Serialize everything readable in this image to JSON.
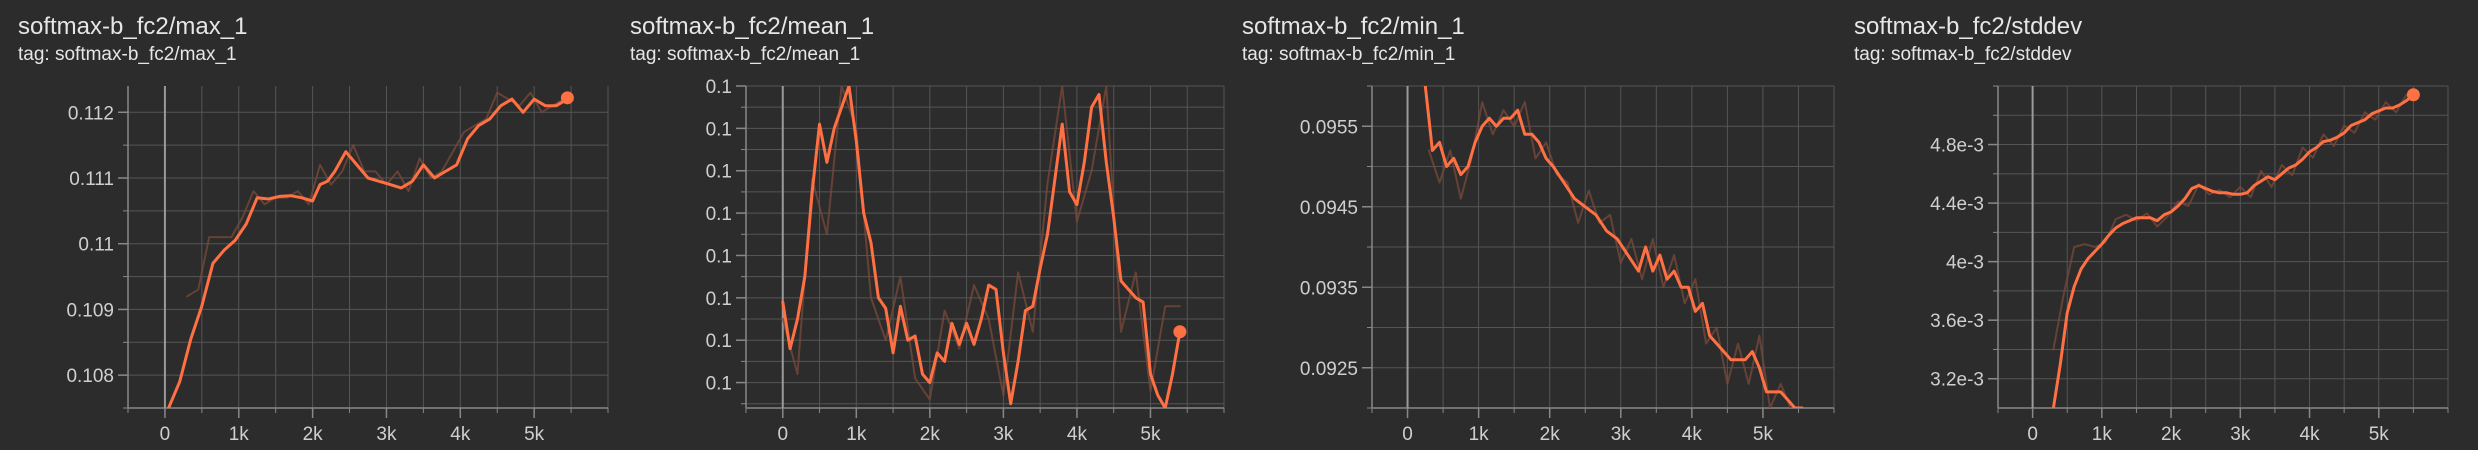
{
  "colors": {
    "background": "#2c2c2c",
    "grid": "#555555",
    "axis": "#888888",
    "zero_line": "#9a9a9a",
    "smoothed": "#ff7043",
    "raw": "#7a4a3a",
    "text": "#e6e6e6",
    "tick_text": "#cfcfcf"
  },
  "chart_data": [
    {
      "type": "line",
      "title": "softmax-b_fc2/max_1",
      "tag": "tag: softmax-b_fc2/max_1",
      "x_ticks": [
        0,
        1000,
        2000,
        3000,
        4000,
        5000
      ],
      "x_tick_labels": [
        "0",
        "1k",
        "2k",
        "3k",
        "4k",
        "5k"
      ],
      "y_ticks": [
        0.108,
        0.109,
        0.11,
        0.111,
        0.112
      ],
      "y_tick_labels": [
        "0.108",
        "0.109",
        "0.11",
        "0.111",
        "0.112"
      ],
      "xlim": [
        -500,
        6000
      ],
      "ylim": [
        0.1075,
        0.1124
      ],
      "grid": true,
      "series": [
        {
          "style": "smoothed",
          "x": [
            50,
            200,
            350,
            500,
            650,
            800,
            950,
            1100,
            1250,
            1400,
            1550,
            1700,
            1850,
            2000,
            2100,
            2200,
            2300,
            2450,
            2600,
            2750,
            2900,
            3050,
            3200,
            3350,
            3500,
            3650,
            3800,
            3950,
            4100,
            4250,
            4400,
            4550,
            4700,
            4850,
            5000,
            5150,
            5300,
            5450
          ],
          "y": [
            0.1075,
            0.1079,
            0.10855,
            0.10905,
            0.1097,
            0.1099,
            0.11005,
            0.1103,
            0.1107,
            0.11068,
            0.11072,
            0.11073,
            0.1107,
            0.11065,
            0.1109,
            0.11095,
            0.1111,
            0.1114,
            0.1112,
            0.111,
            0.11095,
            0.1109,
            0.11085,
            0.11095,
            0.1112,
            0.111,
            0.1111,
            0.1112,
            0.1116,
            0.1118,
            0.1119,
            0.1121,
            0.1122,
            0.112,
            0.1122,
            0.1121,
            0.1121,
            0.1122
          ]
        },
        {
          "style": "raw",
          "x": [
            300,
            450,
            600,
            750,
            900,
            1050,
            1200,
            1350,
            1500,
            1650,
            1800,
            1950,
            2100,
            2250,
            2400,
            2550,
            2700,
            2850,
            3000,
            3150,
            3300,
            3450,
            3600,
            3750,
            3900,
            4050,
            4200,
            4350,
            4500,
            4650,
            4800,
            4950,
            5100,
            5250,
            5400
          ],
          "y": [
            0.1092,
            0.1093,
            0.1101,
            0.1101,
            0.1101,
            0.1104,
            0.1108,
            0.1106,
            0.1107,
            0.1107,
            0.1108,
            0.1106,
            0.1112,
            0.1109,
            0.1111,
            0.1115,
            0.1111,
            0.1111,
            0.1109,
            0.1111,
            0.1108,
            0.1113,
            0.111,
            0.1111,
            0.1114,
            0.1117,
            0.1118,
            0.1119,
            0.1123,
            0.1122,
            0.1121,
            0.1123,
            0.112,
            0.1121,
            0.1122
          ]
        }
      ],
      "last_point": {
        "x": 5450,
        "y": 0.11222
      }
    },
    {
      "type": "line",
      "title": "softmax-b_fc2/mean_1",
      "tag": "tag: softmax-b_fc2/mean_1",
      "x_ticks": [
        0,
        1000,
        2000,
        3000,
        4000,
        5000
      ],
      "x_tick_labels": [
        "0",
        "1k",
        "2k",
        "3k",
        "4k",
        "5k"
      ],
      "y_ticks": [
        0,
        1,
        2,
        3,
        4,
        5,
        6,
        7
      ],
      "y_tick_labels": [
        "0.1",
        "0.1",
        "0.1",
        "0.1",
        "0.1",
        "0.1",
        "0.1",
        "0.1"
      ],
      "xlim": [
        -500,
        6000
      ],
      "ylim": [
        -0.6,
        7.0
      ],
      "grid": true,
      "series": [
        {
          "style": "smoothed",
          "x": [
            0,
            100,
            200,
            300,
            400,
            500,
            600,
            700,
            800,
            900,
            1000,
            1100,
            1200,
            1300,
            1400,
            1500,
            1600,
            1700,
            1800,
            1900,
            2000,
            2100,
            2200,
            2300,
            2400,
            2500,
            2600,
            2700,
            2800,
            2900,
            3000,
            3100,
            3200,
            3300,
            3400,
            3500,
            3600,
            3700,
            3800,
            3900,
            4000,
            4100,
            4200,
            4300,
            4400,
            4500,
            4600,
            4700,
            4800,
            4900,
            5000,
            5100,
            5200,
            5300,
            5400
          ],
          "y": [
            1.9,
            0.8,
            1.5,
            2.5,
            4.5,
            6.1,
            5.2,
            6.0,
            6.5,
            7.0,
            5.7,
            4.0,
            3.3,
            2.0,
            1.75,
            0.7,
            1.8,
            1.0,
            1.1,
            0.2,
            0.0,
            0.7,
            0.5,
            1.4,
            0.9,
            1.4,
            0.9,
            1.5,
            2.3,
            2.2,
            0.7,
            -0.5,
            0.5,
            1.7,
            1.8,
            2.7,
            3.5,
            4.8,
            6.1,
            4.5,
            4.2,
            5.2,
            6.5,
            6.8,
            5.2,
            3.9,
            2.4,
            2.2,
            2.0,
            1.9,
            0.2,
            -0.3,
            -0.6,
            0.2,
            1.2
          ]
        },
        {
          "style": "raw",
          "x": [
            0,
            200,
            400,
            600,
            800,
            1000,
            1200,
            1400,
            1600,
            1800,
            2000,
            2200,
            2400,
            2600,
            2800,
            3000,
            3200,
            3400,
            3600,
            3800,
            4000,
            4200,
            4400,
            4600,
            4800,
            5000,
            5200,
            5400
          ],
          "y": [
            1.5,
            0.2,
            4.8,
            3.5,
            7.0,
            6.0,
            2.0,
            1.0,
            2.5,
            0.1,
            -0.4,
            1.7,
            0.8,
            2.3,
            1.5,
            -0.3,
            2.6,
            1.2,
            4.7,
            7.0,
            3.8,
            5.0,
            7.0,
            1.2,
            2.6,
            -0.2,
            1.8,
            1.8
          ]
        }
      ],
      "last_point": {
        "x": 5400,
        "y": 1.2
      }
    },
    {
      "type": "line",
      "title": "softmax-b_fc2/min_1",
      "tag": "tag: softmax-b_fc2/min_1",
      "x_ticks": [
        0,
        1000,
        2000,
        3000,
        4000,
        5000
      ],
      "x_tick_labels": [
        "0",
        "1k",
        "2k",
        "3k",
        "4k",
        "5k"
      ],
      "y_ticks": [
        0.0925,
        0.0935,
        0.0945,
        0.0955
      ],
      "y_tick_labels": [
        "0.0925",
        "0.0935",
        "0.0945",
        "0.0955"
      ],
      "xlim": [
        -500,
        6000
      ],
      "ylim": [
        0.092,
        0.096
      ],
      "grid": true,
      "series": [
        {
          "style": "smoothed",
          "x": [
            250,
            350,
            450,
            550,
            650,
            750,
            850,
            950,
            1050,
            1150,
            1250,
            1350,
            1450,
            1550,
            1650,
            1750,
            1850,
            1950,
            2050,
            2200,
            2350,
            2500,
            2650,
            2800,
            2950,
            3100,
            3250,
            3350,
            3450,
            3550,
            3650,
            3750,
            3850,
            3950,
            4050,
            4150,
            4250,
            4350,
            4450,
            4550,
            4650,
            4750,
            4850,
            4950,
            5050,
            5150,
            5250,
            5350,
            5450,
            5550
          ],
          "y": [
            0.096,
            0.0952,
            0.0953,
            0.095,
            0.0951,
            0.0949,
            0.095,
            0.0953,
            0.0955,
            0.0956,
            0.0955,
            0.0956,
            0.0956,
            0.0957,
            0.0954,
            0.0954,
            0.0953,
            0.0951,
            0.095,
            0.0948,
            0.0946,
            0.0945,
            0.0944,
            0.0942,
            0.0941,
            0.0939,
            0.0937,
            0.094,
            0.0937,
            0.0939,
            0.0936,
            0.0937,
            0.0935,
            0.0935,
            0.0932,
            0.0933,
            0.0929,
            0.0928,
            0.0927,
            0.0926,
            0.0926,
            0.0926,
            0.0927,
            0.0925,
            0.0922,
            0.0922,
            0.0922,
            0.0921,
            0.092,
            0.092
          ]
        },
        {
          "style": "raw",
          "x": [
            300,
            450,
            600,
            750,
            900,
            1050,
            1200,
            1350,
            1500,
            1650,
            1800,
            1950,
            2100,
            2250,
            2400,
            2550,
            2700,
            2850,
            3000,
            3150,
            3300,
            3450,
            3600,
            3750,
            3900,
            4050,
            4200,
            4350,
            4500,
            4650,
            4800,
            4950,
            5100,
            5250,
            5400
          ],
          "y": [
            0.0952,
            0.0948,
            0.0952,
            0.0946,
            0.0951,
            0.0958,
            0.0954,
            0.0957,
            0.0955,
            0.0958,
            0.0951,
            0.0953,
            0.0949,
            0.0948,
            0.0943,
            0.0947,
            0.0943,
            0.0944,
            0.0938,
            0.0941,
            0.0936,
            0.0941,
            0.0935,
            0.0939,
            0.0933,
            0.0936,
            0.0928,
            0.093,
            0.0923,
            0.0928,
            0.0923,
            0.0929,
            0.092,
            0.0923,
            0.0919
          ]
        }
      ],
      "last_point": null
    },
    {
      "type": "line",
      "title": "softmax-b_fc2/stddev",
      "tag": "tag: softmax-b_fc2/stddev",
      "x_ticks": [
        0,
        1000,
        2000,
        3000,
        4000,
        5000
      ],
      "x_tick_labels": [
        "0",
        "1k",
        "2k",
        "3k",
        "4k",
        "5k"
      ],
      "y_ticks": [
        0.0032,
        0.0036,
        0.004,
        0.0044,
        0.0048
      ],
      "y_tick_labels": [
        "3.2e-3",
        "3.6e-3",
        "4e-3",
        "4.4e-3",
        "4.8e-3"
      ],
      "xlim": [
        -500,
        6000
      ],
      "ylim": [
        0.003,
        0.0052
      ],
      "grid": true,
      "series": [
        {
          "style": "smoothed",
          "x": [
            300,
            400,
            500,
            600,
            700,
            800,
            900,
            1000,
            1100,
            1200,
            1300,
            1400,
            1500,
            1600,
            1700,
            1800,
            1900,
            2000,
            2100,
            2200,
            2300,
            2400,
            2500,
            2600,
            2700,
            2800,
            2900,
            3000,
            3100,
            3200,
            3300,
            3400,
            3500,
            3600,
            3700,
            3800,
            3900,
            4000,
            4100,
            4200,
            4300,
            4400,
            4500,
            4600,
            4700,
            4800,
            4900,
            5000,
            5100,
            5200,
            5300,
            5400,
            5500
          ],
          "y": [
            0.003,
            0.0033,
            0.00365,
            0.00383,
            0.00395,
            0.00402,
            0.00407,
            0.00412,
            0.00418,
            0.00423,
            0.00426,
            0.00428,
            0.0043,
            0.0043,
            0.0043,
            0.00428,
            0.00432,
            0.00434,
            0.00438,
            0.00443,
            0.0045,
            0.00452,
            0.0045,
            0.00448,
            0.00447,
            0.00447,
            0.00446,
            0.00446,
            0.00447,
            0.00452,
            0.00455,
            0.00458,
            0.00456,
            0.0046,
            0.00464,
            0.00466,
            0.0047,
            0.00475,
            0.00478,
            0.00482,
            0.00483,
            0.00485,
            0.00488,
            0.00493,
            0.00495,
            0.00497,
            0.00501,
            0.00503,
            0.00505,
            0.00505,
            0.00507,
            0.0051,
            0.00514
          ]
        },
        {
          "style": "raw",
          "x": [
            300,
            450,
            600,
            750,
            900,
            1050,
            1200,
            1350,
            1500,
            1650,
            1800,
            1950,
            2100,
            2250,
            2400,
            2550,
            2700,
            2850,
            3000,
            3150,
            3300,
            3450,
            3600,
            3750,
            3900,
            4050,
            4200,
            4350,
            4500,
            4650,
            4800,
            4950,
            5100,
            5250,
            5400
          ],
          "y": [
            0.0034,
            0.00378,
            0.0041,
            0.00412,
            0.0041,
            0.00413,
            0.00429,
            0.00432,
            0.00428,
            0.00433,
            0.00424,
            0.00431,
            0.00441,
            0.00438,
            0.00453,
            0.00446,
            0.00449,
            0.00444,
            0.00451,
            0.00444,
            0.00462,
            0.00451,
            0.00466,
            0.00459,
            0.00478,
            0.00471,
            0.00487,
            0.00479,
            0.00493,
            0.00488,
            0.00502,
            0.00497,
            0.00509,
            0.00502,
            0.00514
          ]
        }
      ],
      "last_point": {
        "x": 5500,
        "y": 0.00514
      }
    }
  ]
}
